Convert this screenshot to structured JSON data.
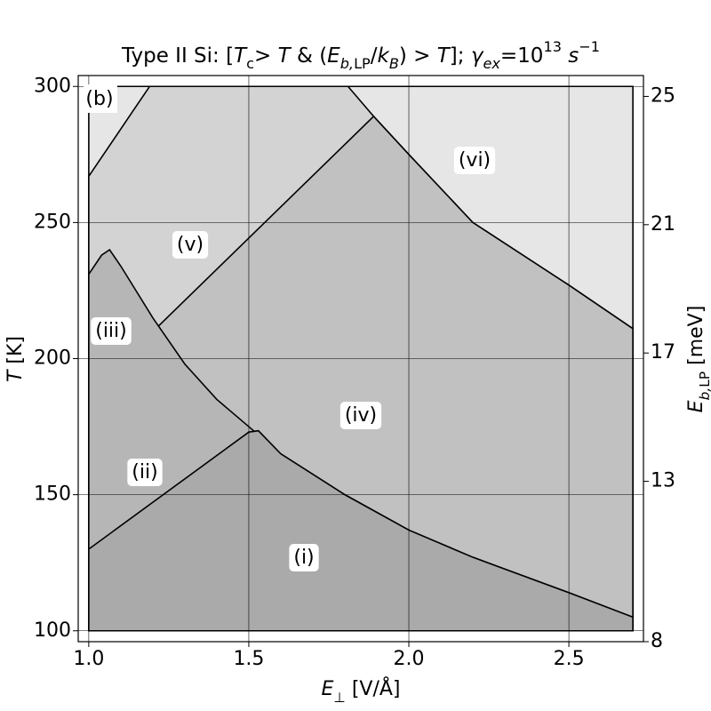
{
  "chart_data": {
    "type": "area",
    "title": [
      {
        "text": "Type II Si: [",
        "style": "normal"
      },
      {
        "text": "T",
        "style": "italic"
      },
      {
        "text": "c",
        "style": "sub"
      },
      {
        "text": "> ",
        "style": "normal"
      },
      {
        "text": "T",
        "style": "italic"
      },
      {
        "text": " & (",
        "style": "normal"
      },
      {
        "text": "E",
        "style": "italic"
      },
      {
        "text": "b,",
        "style": "sub-italic"
      },
      {
        "text": "LP",
        "style": "sub"
      },
      {
        "text": "/",
        "style": "normal"
      },
      {
        "text": "k",
        "style": "italic"
      },
      {
        "text": "B",
        "style": "sub-italic"
      },
      {
        "text": ") > ",
        "style": "normal"
      },
      {
        "text": "T",
        "style": "italic"
      },
      {
        "text": "]; ",
        "style": "normal"
      },
      {
        "text": "γ",
        "style": "italic"
      },
      {
        "text": "ex",
        "style": "sub-italic"
      },
      {
        "text": "=10",
        "style": "normal"
      },
      {
        "text": "13",
        "style": "sup"
      },
      {
        "text": " s",
        "style": "italic"
      },
      {
        "text": "−1",
        "style": "sup"
      }
    ],
    "xlabel": [
      {
        "text": "E",
        "style": "italic"
      },
      {
        "text": "⊥",
        "style": "sub"
      },
      {
        "text": " [V/Å]",
        "style": "normal"
      }
    ],
    "ylabel": [
      {
        "text": "T",
        "style": "italic"
      },
      {
        "text": " [K]",
        "style": "normal"
      }
    ],
    "y2label": [
      {
        "text": "E",
        "style": "italic"
      },
      {
        "text": "b,",
        "style": "sub-italic"
      },
      {
        "text": "LP",
        "style": "sub"
      },
      {
        "text": " [meV]",
        "style": "normal"
      }
    ],
    "panel_label": "(b)",
    "xlim": [
      0.967,
      2.733
    ],
    "ylim": [
      96,
      304
    ],
    "y2lim": [
      8,
      25.65
    ],
    "xticks": [
      {
        "value": 1,
        "label": "1.0"
      },
      1.5,
      {
        "value": 2,
        "label": "2.0"
      },
      2.5
    ],
    "yticks": [
      100,
      150,
      200,
      250,
      300
    ],
    "y2ticks": [
      8,
      13,
      17,
      21,
      25
    ],
    "grid": true,
    "series": [
      {
        "color": "#e6e6e6",
        "x": [
          1.0,
          2.7
        ],
        "values": [
          300,
          300
        ]
      },
      {
        "color": "#d3d3d3",
        "x": [
          1.0,
          1.19,
          1.81,
          1.89,
          2.0,
          2.2,
          2.5,
          2.7
        ],
        "values": [
          267,
          300,
          300,
          289,
          275,
          250,
          227,
          211
        ]
      },
      {
        "color": "#c1c1c1",
        "x": [
          1.0,
          1.89,
          2.0,
          2.2,
          2.5,
          2.7
        ],
        "values": [
          187,
          289,
          275,
          250,
          227,
          211
        ]
      },
      {
        "color": "#b6b6b6",
        "x": [
          1.0,
          1.04,
          1.065,
          1.1,
          1.2,
          1.3,
          1.4,
          1.5,
          1.6,
          1.8,
          2.0,
          2.2,
          2.5,
          2.7
        ],
        "values": [
          231,
          238,
          240,
          234,
          215,
          198,
          185,
          175,
          165,
          150,
          137,
          127,
          114,
          105
        ]
      },
      {
        "color": "#aaaaaa",
        "x": [
          1.0,
          1.5,
          1.53,
          1.6,
          1.8,
          2.0,
          2.2,
          2.5,
          2.7
        ],
        "values": [
          130,
          173,
          173.5,
          165,
          150,
          137,
          127,
          114,
          105
        ]
      }
    ],
    "region_labels": [
      "(vi)",
      "(v)",
      "(iii)",
      "(iv)",
      "(ii)",
      "(i)"
    ]
  }
}
